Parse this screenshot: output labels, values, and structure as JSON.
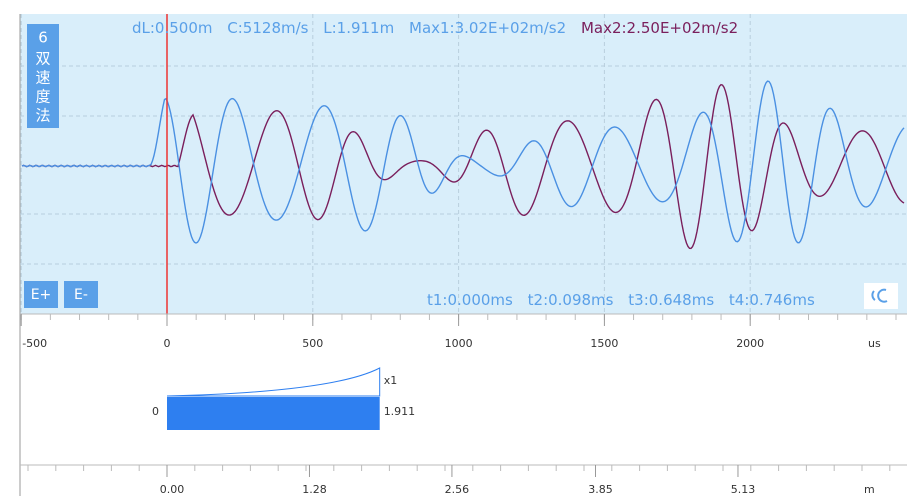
{
  "header": {
    "badge": "6",
    "method": "双速度法",
    "dl": "dL:0.500m",
    "c": "C:5128m/s",
    "l": "L:1.911m",
    "max1": "Max1:3.02E+02m/s2",
    "max2": "Max2:2.50E+02m/s2"
  },
  "markers": [
    "t1:0.000ms",
    "t2:0.098ms",
    "t3:0.648ms",
    "t4:0.746ms"
  ],
  "buttons": [
    "E+",
    "E-"
  ],
  "time_axis": {
    "ticks": [
      -500,
      0,
      500,
      1000,
      1500,
      2000
    ],
    "unit": "us"
  },
  "length_axis": {
    "ticks": [
      {
        "value": 0,
        "label": "0.00"
      },
      1.28,
      2.56,
      3.85,
      5.13
    ],
    "unit": "m"
  },
  "bar": {
    "start": 0,
    "end": 1.911,
    "scale": "x1"
  }
}
